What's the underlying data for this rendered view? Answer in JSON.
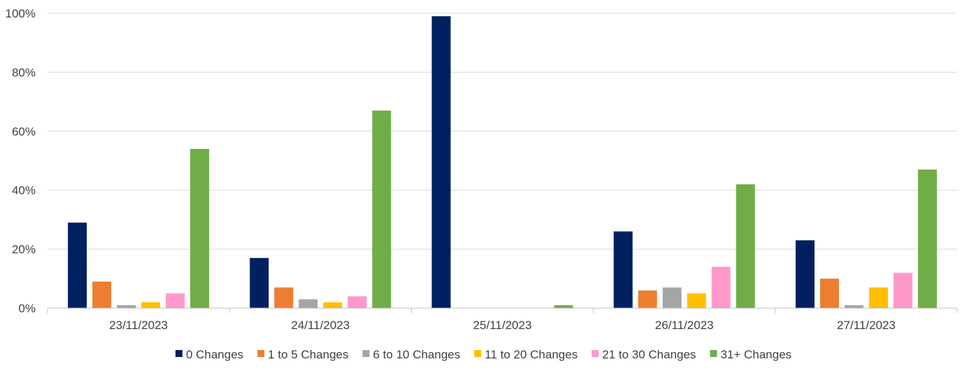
{
  "chart_data": {
    "type": "bar",
    "title": "",
    "xlabel": "",
    "ylabel": "",
    "categories": [
      "23/11/2023",
      "24/11/2023",
      "25/11/2023",
      "26/11/2023",
      "27/11/2023"
    ],
    "ylim": [
      0,
      100
    ],
    "yticks": [
      0,
      20,
      40,
      60,
      80,
      100
    ],
    "ytick_labels": [
      "0%",
      "20%",
      "40%",
      "60%",
      "80%",
      "100%"
    ],
    "grid": true,
    "legend_position": "bottom",
    "series": [
      {
        "name": "0 Changes",
        "color": "#002060",
        "values": [
          29,
          17,
          99,
          26,
          23
        ]
      },
      {
        "name": "1 to 5 Changes",
        "color": "#ED7D31",
        "values": [
          9,
          7,
          0,
          6,
          10
        ]
      },
      {
        "name": "6 to 10 Changes",
        "color": "#A5A5A5",
        "values": [
          1,
          3,
          0,
          7,
          1
        ]
      },
      {
        "name": "11 to 20 Changes",
        "color": "#FFC000",
        "values": [
          2,
          2,
          0,
          5,
          7
        ]
      },
      {
        "name": "21 to 30 Changes",
        "color": "#FF99CC",
        "values": [
          5,
          4,
          0,
          14,
          12
        ]
      },
      {
        "name": "31+ Changes",
        "color": "#70AD47",
        "values": [
          54,
          67,
          1,
          42,
          47
        ]
      }
    ]
  }
}
